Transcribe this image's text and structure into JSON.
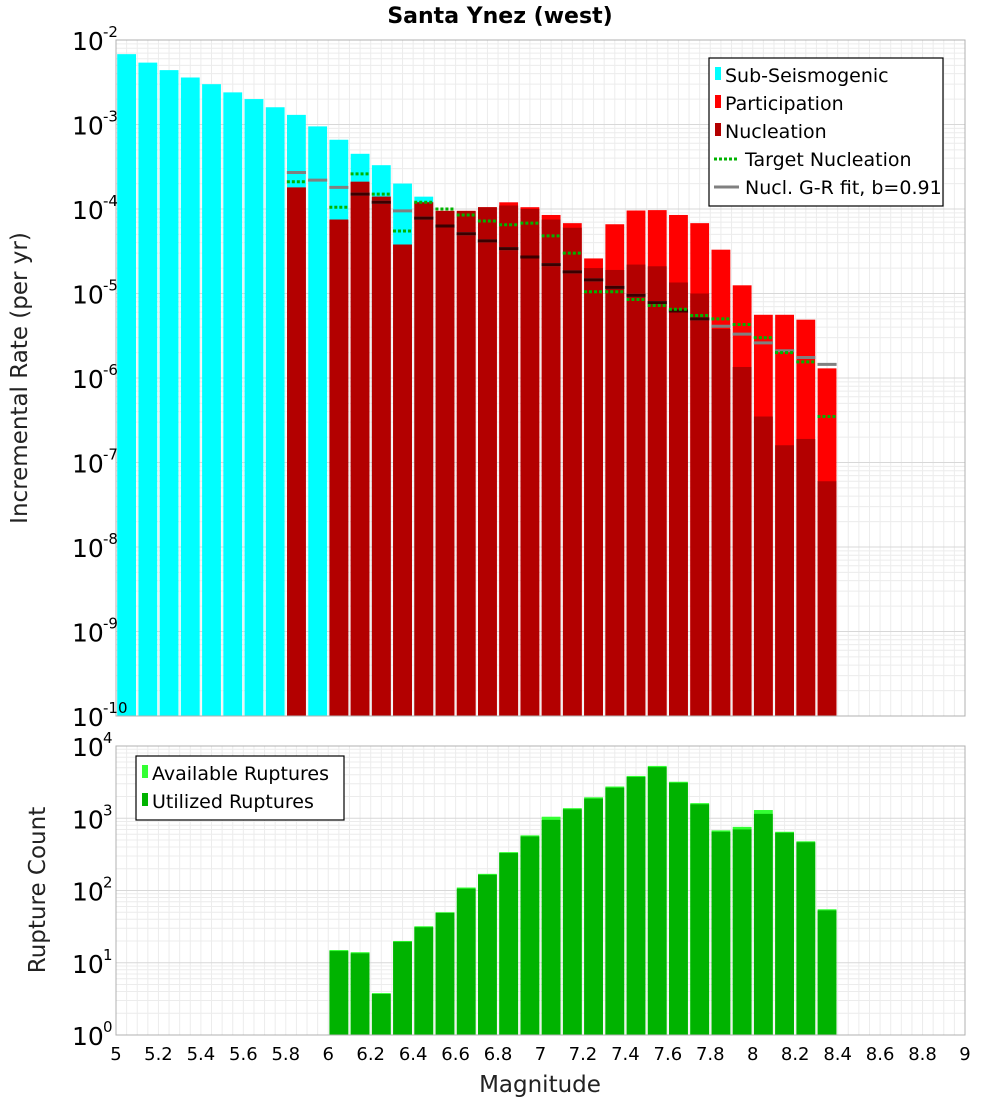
{
  "title": "Santa Ynez (west)",
  "colors": {
    "sub_seismogenic": "#00ffff",
    "participation": "#ff0000",
    "nucleation": "#b30000",
    "target_nucleation": "#00b300",
    "gr_fit": "#808080",
    "available": "#33ff33",
    "utilized": "#00b300"
  },
  "chart_data": [
    {
      "type": "bar",
      "title": "Santa Ynez (west)",
      "xlabel": "",
      "ylabel": "Incremental Rate (per yr)",
      "xlim": [
        5,
        9
      ],
      "ylim": [
        1e-10,
        0.01
      ],
      "yscale": "log",
      "grid": true,
      "legend_position": "top-right",
      "legend": [
        "Sub-Seismogenic",
        "Participation",
        "Nucleation",
        "Target Nucleation",
        "Nucl. G-R fit, b=0.91"
      ],
      "bin_width": 0.1,
      "sub_seismogenic": {
        "x": [
          5.05,
          5.15,
          5.25,
          5.35,
          5.45,
          5.55,
          5.65,
          5.75,
          5.85,
          5.95,
          6.05,
          6.15,
          6.25,
          6.35,
          6.45
        ],
        "values": [
          0.0068,
          0.0054,
          0.0044,
          0.0036,
          0.003,
          0.0024,
          0.002,
          0.0016,
          0.0013,
          0.00095,
          0.00066,
          0.00045,
          0.00033,
          0.0002,
          0.00014
        ]
      },
      "participation": {
        "x": [
          5.85,
          5.95,
          6.05,
          6.15,
          6.25,
          6.35,
          6.45,
          6.55,
          6.65,
          6.75,
          6.85,
          6.95,
          7.05,
          7.15,
          7.25,
          7.35,
          7.45,
          7.55,
          7.65,
          7.75,
          7.85,
          7.95,
          8.05,
          8.15,
          8.25,
          8.35
        ],
        "values": [
          0.00018,
          null,
          7.5e-05,
          0.00021,
          0.00014,
          3.8e-05,
          0.00012,
          9.5e-05,
          9.5e-05,
          0.000105,
          0.00012,
          0.000105,
          8.5e-05,
          6.8e-05,
          2.6e-05,
          6.6e-05,
          9.6e-05,
          9.7e-05,
          8.5e-05,
          6.8e-05,
          3.3e-05,
          1.25e-05,
          5.6e-06,
          5.6e-06,
          4.9e-06,
          1.3e-06
        ]
      },
      "nucleation": {
        "x": [
          5.85,
          5.95,
          6.05,
          6.15,
          6.25,
          6.35,
          6.45,
          6.55,
          6.65,
          6.75,
          6.85,
          6.95,
          7.05,
          7.15,
          7.25,
          7.35,
          7.45,
          7.55,
          7.65,
          7.75,
          7.85,
          7.95,
          8.05,
          8.15,
          8.25,
          8.35
        ],
        "values": [
          0.00018,
          null,
          7.5e-05,
          0.00021,
          0.00014,
          3.8e-05,
          0.00012,
          9.5e-05,
          9.5e-05,
          0.000105,
          0.00011,
          0.0001,
          7.5e-05,
          6e-05,
          2e-05,
          1.9e-05,
          2.2e-05,
          2.1e-05,
          1.35e-05,
          1e-05,
          3.8e-06,
          1.35e-06,
          3.5e-07,
          1.6e-07,
          1.9e-07,
          6e-08
        ]
      },
      "target_nucleation": {
        "x": [
          5.85,
          5.95,
          6.05,
          6.15,
          6.25,
          6.35,
          6.45,
          6.55,
          6.65,
          6.75,
          6.85,
          6.95,
          7.05,
          7.15,
          7.25,
          7.35,
          7.45,
          7.55,
          7.65,
          7.75,
          7.85,
          7.95,
          8.05,
          8.15,
          8.25,
          8.35
        ],
        "values": [
          0.00021,
          null,
          0.000105,
          0.00026,
          0.00015,
          5.5e-05,
          0.00012,
          0.0001,
          8.5e-05,
          7.2e-05,
          6.5e-05,
          6.8e-05,
          4.8e-05,
          3e-05,
          1.05e-05,
          1.05e-05,
          8.5e-06,
          7.2e-06,
          6.5e-06,
          5.5e-06,
          5e-06,
          4.3e-06,
          3e-06,
          2e-06,
          1.55e-06,
          3.5e-07
        ]
      },
      "gr_fit": {
        "x": [
          5.85,
          5.95,
          6.05,
          6.15,
          6.25,
          6.35,
          6.45,
          6.55,
          6.65,
          6.75,
          6.85,
          6.95,
          7.05,
          7.15,
          7.25,
          7.35,
          7.45,
          7.55,
          7.65,
          7.75,
          7.85,
          7.95,
          8.05,
          8.15,
          8.25,
          8.35
        ],
        "values": [
          0.00027,
          0.00022,
          0.00018,
          0.00015,
          0.00012,
          9.5e-05,
          7.8e-05,
          6.3e-05,
          5.1e-05,
          4.2e-05,
          3.4e-05,
          2.7e-05,
          2.2e-05,
          1.8e-05,
          1.45e-05,
          1.18e-05,
          9.5e-06,
          7.8e-06,
          6.2e-06,
          5e-06,
          4.1e-06,
          3.3e-06,
          2.6e-06,
          2.1e-06,
          1.75e-06,
          1.45e-06
        ]
      }
    },
    {
      "type": "bar",
      "xlabel": "Magnitude",
      "ylabel": "Rupture Count",
      "xlim": [
        5,
        9
      ],
      "ylim": [
        1,
        10000
      ],
      "yscale": "log",
      "grid": true,
      "legend_position": "top-left",
      "legend": [
        "Available Ruptures",
        "Utilized Ruptures"
      ],
      "x_ticks": [
        "5",
        "5.2",
        "5.4",
        "5.6",
        "5.8",
        "6",
        "6.2",
        "6.4",
        "6.6",
        "6.8",
        "7",
        "7.2",
        "7.4",
        "7.6",
        "7.8",
        "8",
        "8.2",
        "8.4",
        "8.6",
        "8.8",
        "9"
      ],
      "bin_width": 0.1,
      "available": {
        "x": [
          6.05,
          6.15,
          6.25,
          6.35,
          6.45,
          6.55,
          6.65,
          6.75,
          6.85,
          6.95,
          7.05,
          7.15,
          7.25,
          7.35,
          7.45,
          7.55,
          7.65,
          7.75,
          7.85,
          7.95,
          8.05,
          8.15,
          8.25,
          8.35
        ],
        "values": [
          15,
          14,
          3.8,
          20,
          32,
          50,
          110,
          170,
          340,
          580,
          1050,
          1380,
          1950,
          2750,
          3850,
          5300,
          3200,
          1620,
          680,
          760,
          1300,
          650,
          480,
          55
        ]
      },
      "utilized": {
        "x": [
          6.05,
          6.15,
          6.25,
          6.35,
          6.45,
          6.55,
          6.65,
          6.75,
          6.85,
          6.95,
          7.05,
          7.15,
          7.25,
          7.35,
          7.45,
          7.55,
          7.65,
          7.75,
          7.85,
          7.95,
          8.05,
          8.15,
          8.25,
          8.35
        ],
        "values": [
          14.5,
          13.5,
          3.7,
          19.5,
          31,
          49,
          106,
          165,
          330,
          560,
          950,
          1330,
          1870,
          2650,
          3720,
          5100,
          3100,
          1560,
          650,
          700,
          1150,
          630,
          465,
          53
        ]
      }
    }
  ]
}
